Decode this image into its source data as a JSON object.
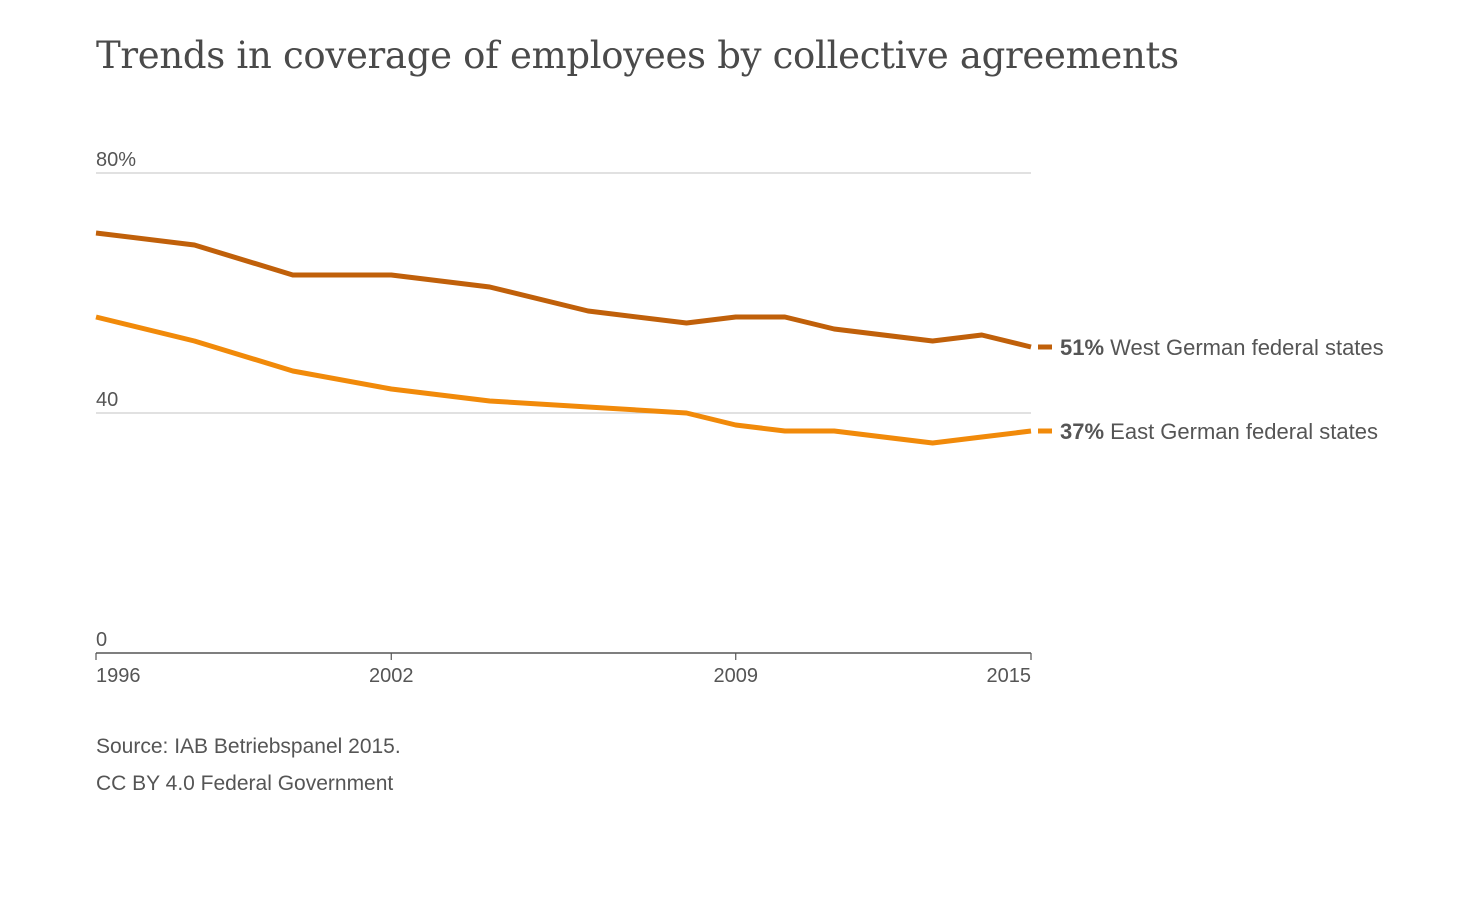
{
  "title": "Trends in coverage of employees by collective agreements",
  "source": "Source: IAB Betriebspanel 2015.",
  "license": "CC BY 4.0 Federal Government",
  "chart_data": {
    "type": "line",
    "title": "Trends in coverage of employees by collective agreements",
    "x": [
      1996,
      1998,
      2000,
      2002,
      2004,
      2006,
      2008,
      2009,
      2010,
      2011,
      2013,
      2014,
      2015
    ],
    "xticks": [
      1996,
      2002,
      2009,
      2015
    ],
    "xtick_labels": [
      "1996",
      "2002",
      "2009",
      "2015"
    ],
    "xlim": [
      1996,
      2015
    ],
    "ylim": [
      0,
      80
    ],
    "yticks": [
      0,
      40,
      80
    ],
    "ytick_labels": [
      "0",
      "40",
      "80%"
    ],
    "grid": true,
    "series": [
      {
        "name": "West German federal states",
        "end_label_value": "51%",
        "color": "#c0600a",
        "values": [
          70,
          68,
          63,
          63,
          61,
          57,
          55,
          56,
          56,
          54,
          52,
          53,
          51
        ]
      },
      {
        "name": "East German federal states",
        "end_label_value": "37%",
        "color": "#f18a0a",
        "values": [
          56,
          52,
          47,
          44,
          42,
          41,
          40,
          38,
          37,
          37,
          35,
          36,
          37
        ]
      }
    ]
  }
}
